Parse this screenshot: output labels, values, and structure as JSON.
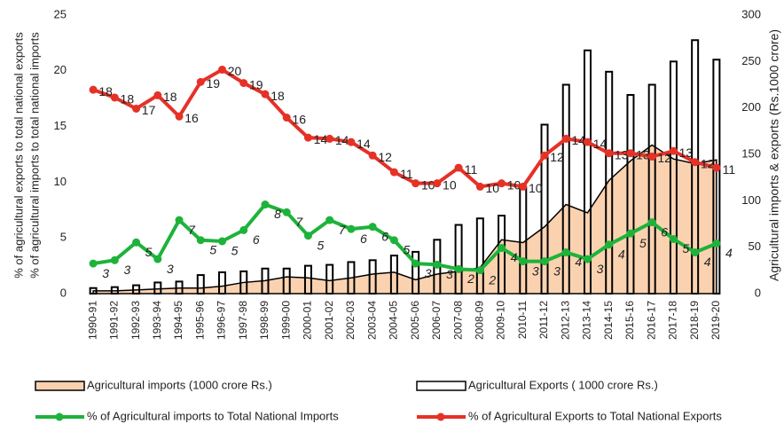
{
  "chart_data": {
    "type": "combo",
    "ylabel": [
      "% of agricultural exports to total national exports",
      "% of agricultural imports to total national imports"
    ],
    "y2label": "Agricultural imports & exports (Rs.1000 crore)",
    "categories": [
      "1990-91",
      "1991-92",
      "1992-93",
      "1993-94",
      "1994-95",
      "1995-96",
      "1996-97",
      "1997-98",
      "1998-99",
      "1999-00",
      "2000-01",
      "2001-02",
      "2002-03",
      "2003-04",
      "2004-05",
      "2005-06",
      "2006-07",
      "2007-08",
      "2008-09",
      "2009-10",
      "2010-11",
      "2011-12",
      "2012-13",
      "2013-14",
      "2014-15",
      "2015-16",
      "2016-17",
      "2017-18",
      "2018-19",
      "2019-20"
    ],
    "ylim": [
      0,
      25
    ],
    "yticks": [
      0,
      5,
      10,
      15,
      20,
      25
    ],
    "y2lim": [
      0,
      300
    ],
    "y2ticks": [
      0,
      50,
      100,
      150,
      200,
      250,
      300
    ],
    "series": [
      {
        "name": "Agricultural imports (1000 crore Rs.)",
        "kind": "area",
        "axis": "y2",
        "color": "#fbd2b0",
        "values": [
          3,
          3,
          4,
          5,
          6,
          6,
          8,
          12,
          14,
          18,
          17,
          14,
          17,
          21,
          23,
          15,
          21,
          24,
          28,
          58,
          55,
          72,
          96,
          87,
          122,
          143,
          160,
          145,
          140,
          144
        ]
      },
      {
        "name": "Agricultural Exports ( 1000 crore Rs.)",
        "kind": "bar",
        "axis": "y2",
        "color": "#ffffff",
        "values": [
          6,
          7,
          9,
          12,
          13,
          20,
          23,
          24,
          27,
          27,
          30,
          31,
          34,
          36,
          41,
          45,
          58,
          74,
          81,
          84,
          114,
          182,
          225,
          262,
          239,
          214,
          225,
          250,
          273,
          252
        ]
      },
      {
        "name": "% of Agricultural imports to Total National Imports",
        "kind": "line",
        "color": "#1db33a",
        "italic": true,
        "values": [
          2.7,
          3.0,
          4.6,
          3.1,
          6.6,
          4.8,
          4.7,
          5.7,
          8.0,
          7.3,
          5.2,
          6.6,
          5.8,
          6.0,
          4.8,
          2.7,
          2.6,
          2.2,
          2.1,
          4.1,
          2.9,
          2.9,
          3.7,
          3.1,
          4.4,
          5.4,
          6.4,
          4.9,
          3.7,
          4.5
        ],
        "value_labels": [
          "3",
          "3",
          "5",
          "3",
          "7",
          "5",
          "5",
          "6",
          "8",
          "7",
          "5",
          "7",
          "6",
          "6",
          "5",
          "3",
          "3",
          "2",
          "2",
          "4",
          "3",
          "3",
          "4",
          "3",
          "4",
          "5",
          "6",
          "5",
          "4",
          "4"
        ]
      },
      {
        "name": "% of Agricultural Exports to Total National Exports",
        "kind": "line",
        "color": "#e63127",
        "italic": false,
        "values": [
          18.3,
          17.6,
          16.6,
          17.8,
          15.9,
          19.0,
          20.1,
          18.9,
          17.9,
          15.8,
          14.0,
          13.9,
          13.6,
          12.4,
          10.9,
          9.9,
          9.9,
          11.3,
          9.6,
          9.9,
          9.6,
          12.4,
          13.9,
          13.6,
          12.6,
          12.6,
          12.3,
          12.8,
          11.8,
          11.3
        ],
        "value_labels": [
          "18",
          "18",
          "17",
          "18",
          "16",
          "19",
          "20",
          "19",
          "18",
          "16",
          "14",
          "14",
          "14",
          "12",
          "11",
          "10",
          "10",
          "11",
          "10",
          "10",
          "10",
          "12",
          "14",
          "14",
          "13",
          "13",
          "12",
          "13",
          "12",
          "11"
        ]
      }
    ]
  }
}
